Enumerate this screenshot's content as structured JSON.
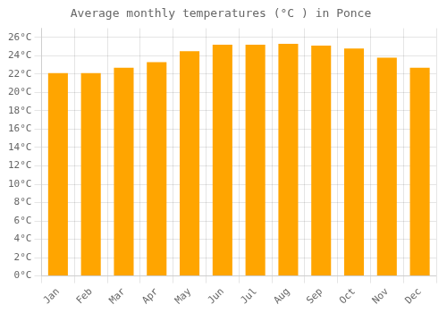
{
  "chart_data": {
    "type": "bar",
    "title": "Average monthly temperatures (°C ) in Ponce",
    "categories": [
      "Jan",
      "Feb",
      "Mar",
      "Apr",
      "May",
      "Jun",
      "Jul",
      "Aug",
      "Sep",
      "Oct",
      "Nov",
      "Dec"
    ],
    "values": [
      22.1,
      22.1,
      22.7,
      23.3,
      24.5,
      25.2,
      25.2,
      25.3,
      25.1,
      24.8,
      23.8,
      22.7
    ],
    "color": "#FFA500",
    "ylim": [
      0,
      27
    ],
    "yticks": [
      {
        "value": 0,
        "label": "0°C"
      },
      {
        "value": 2,
        "label": "2°C"
      },
      {
        "value": 4,
        "label": "4°C"
      },
      {
        "value": 6,
        "label": "6°C"
      },
      {
        "value": 8,
        "label": "8°C"
      },
      {
        "value": 10,
        "label": "10°C"
      },
      {
        "value": 12,
        "label": "12°C"
      },
      {
        "value": 14,
        "label": "14°C"
      },
      {
        "value": 16,
        "label": "16°C"
      },
      {
        "value": 18,
        "label": "18°C"
      },
      {
        "value": 20,
        "label": "20°C"
      },
      {
        "value": 22,
        "label": "22°C"
      },
      {
        "value": 24,
        "label": "24°C"
      },
      {
        "value": 26,
        "label": "26°C"
      }
    ],
    "grid": true
  }
}
